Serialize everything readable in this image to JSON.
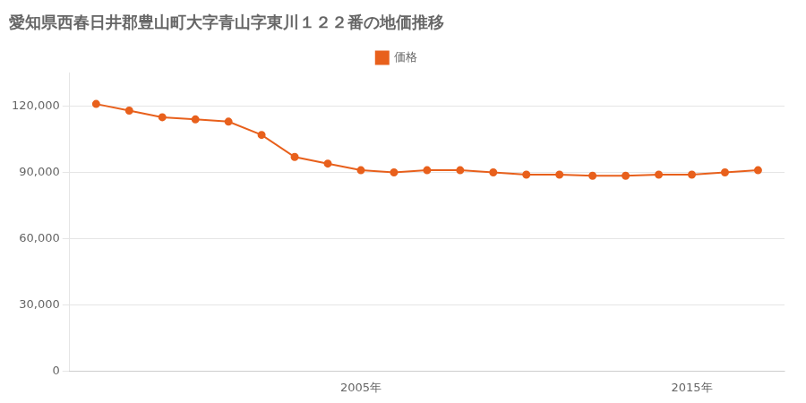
{
  "chart_data": {
    "type": "line",
    "title": "愛知県西春日井郡豊山町大字青山字東川１２２番の地価推移",
    "x": [
      1997,
      1998,
      1999,
      2000,
      2001,
      2002,
      2003,
      2004,
      2005,
      2006,
      2007,
      2008,
      2009,
      2010,
      2011,
      2012,
      2013,
      2014,
      2015,
      2016,
      2017
    ],
    "series": [
      {
        "name": "価格",
        "color": "#e8601c",
        "marker": "circle",
        "values": [
          121000,
          118000,
          115000,
          114000,
          113000,
          107000,
          97000,
          94000,
          91000,
          90000,
          91000,
          91000,
          90000,
          89000,
          89000,
          88500,
          88500,
          89000,
          89000,
          90000,
          91000
        ]
      }
    ],
    "xlim": [
      1996.2,
      2017.8
    ],
    "xticks": [
      {
        "value": 2005,
        "label": "2005年"
      },
      {
        "value": 2015,
        "label": "2015年"
      }
    ],
    "ylim": [
      0,
      135000
    ],
    "yticks": [
      0,
      {
        "value": 30000,
        "label": "30,000"
      },
      {
        "value": 60000,
        "label": "60,000"
      },
      {
        "value": 90000,
        "label": "90,000"
      },
      {
        "value": 120000,
        "label": "120,000"
      }
    ],
    "grid": "y",
    "legend": "top"
  }
}
